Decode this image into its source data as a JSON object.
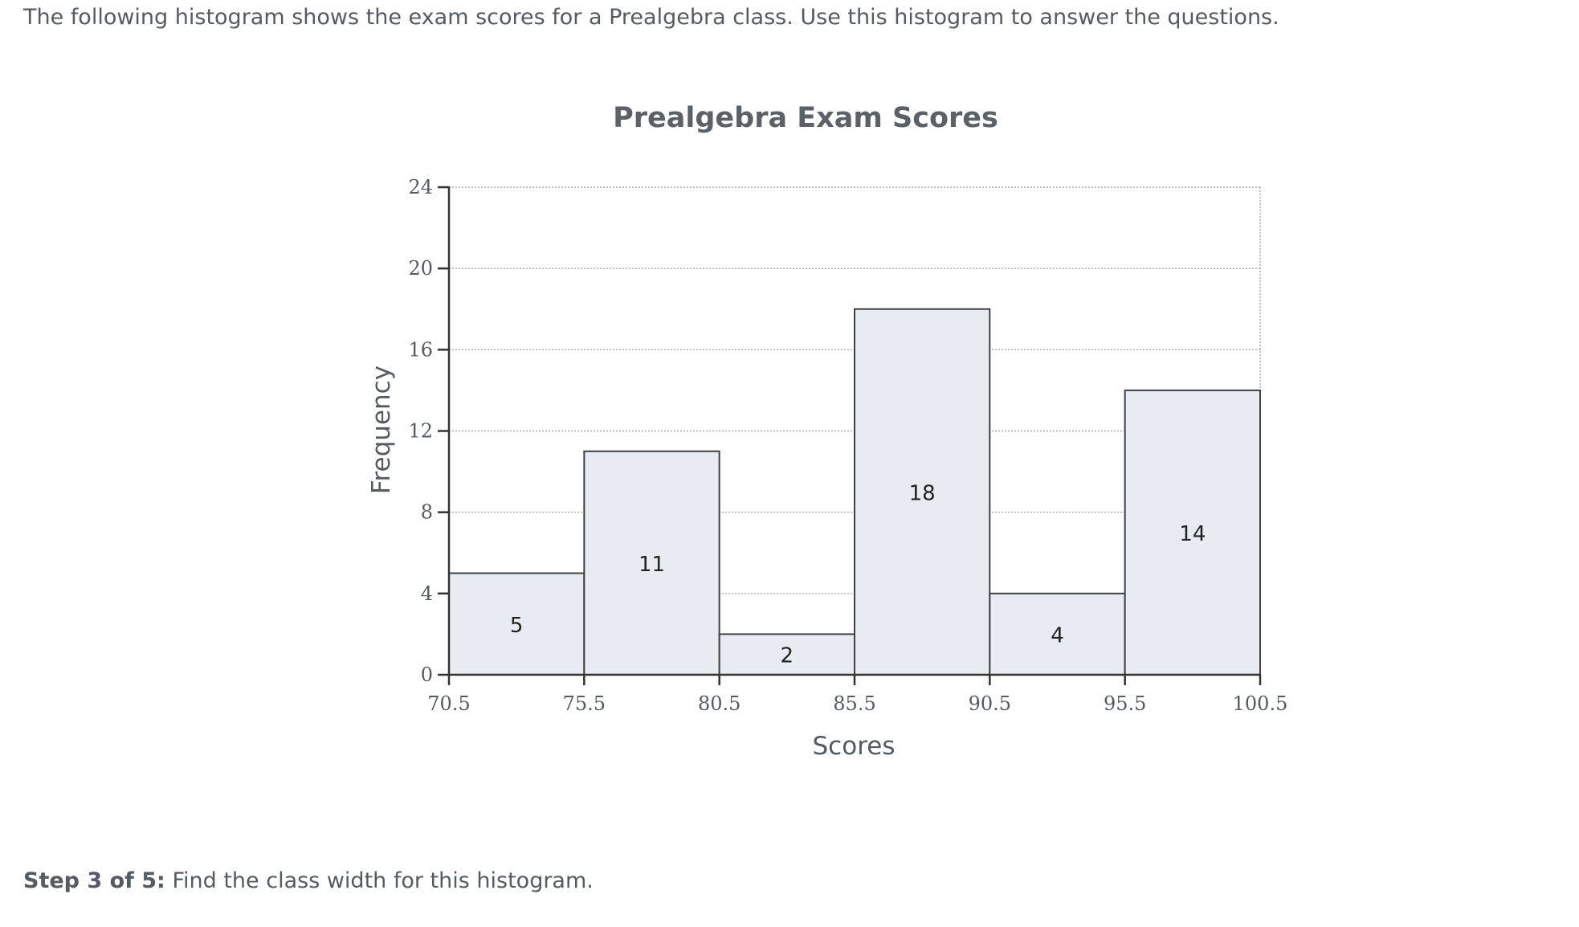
{
  "intro": {
    "text": "The following histogram shows the exam scores for a Prealgebra class. Use this histogram to answer the questions."
  },
  "chart_data": {
    "type": "bar",
    "title": "Prealgebra Exam Scores",
    "xlabel": "Scores",
    "ylabel": "Frequency",
    "bin_edges": [
      70.5,
      75.5,
      80.5,
      85.5,
      90.5,
      95.5,
      100.5
    ],
    "bin_edge_labels": [
      "70.5",
      "75.5",
      "80.5",
      "85.5",
      "90.5",
      "95.5",
      "100.5"
    ],
    "values": [
      5,
      11,
      2,
      18,
      4,
      14
    ],
    "value_labels": [
      "5",
      "11",
      "2",
      "18",
      "4",
      "14"
    ],
    "ylim": [
      0,
      24
    ],
    "yticks": [
      0,
      4,
      8,
      12,
      16,
      20,
      24
    ],
    "ytick_labels": [
      "0",
      "4",
      "8",
      "12",
      "16",
      "20",
      "24"
    ],
    "grid": true,
    "bar_fill": "#e6ecf2",
    "bar_stroke": "#404040"
  },
  "step": {
    "label": "Step 3 of 5:",
    "text": " Find the class width for this histogram."
  }
}
